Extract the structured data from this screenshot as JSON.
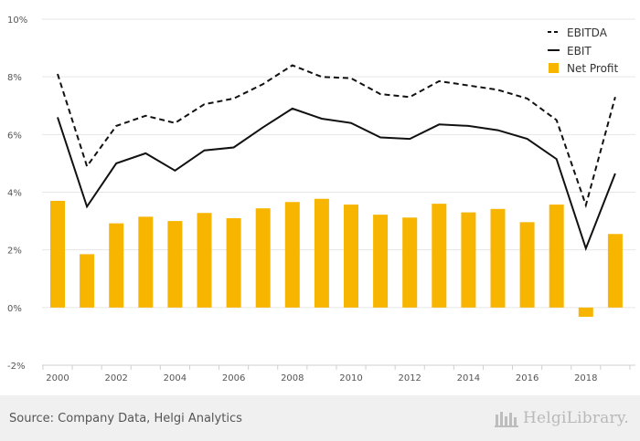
{
  "chart_data": {
    "type": "bar+line",
    "years": [
      2000,
      2001,
      2002,
      2003,
      2004,
      2005,
      2006,
      2007,
      2008,
      2009,
      2010,
      2011,
      2012,
      2013,
      2014,
      2015,
      2016,
      2017,
      2018,
      2019
    ],
    "x_tick_labels": [
      "2000",
      "2002",
      "2004",
      "2006",
      "2008",
      "2010",
      "2012",
      "2014",
      "2016",
      "2018"
    ],
    "y_tick_labels": [
      "10%",
      "8%",
      "6%",
      "4%",
      "2%",
      "0%",
      "-2%"
    ],
    "ylim": [
      -2,
      10
    ],
    "series": [
      {
        "name": "EBITDA",
        "type": "line",
        "style": "dashed",
        "color": "#111111",
        "values": [
          8.1,
          4.9,
          6.3,
          6.65,
          6.4,
          7.05,
          7.25,
          7.75,
          8.4,
          8.0,
          7.95,
          7.4,
          7.3,
          7.85,
          7.7,
          7.55,
          7.25,
          6.5,
          3.55,
          7.3
        ]
      },
      {
        "name": "EBIT",
        "type": "line",
        "style": "solid",
        "color": "#111111",
        "values": [
          6.6,
          3.5,
          5.0,
          5.35,
          4.75,
          5.45,
          5.55,
          6.25,
          6.9,
          6.55,
          6.4,
          5.9,
          5.85,
          6.35,
          6.3,
          6.15,
          5.85,
          5.15,
          2.05,
          4.65
        ]
      },
      {
        "name": "Net Profit",
        "type": "bar",
        "color": "#f7b500",
        "values": [
          3.7,
          1.85,
          2.92,
          3.15,
          3.0,
          3.28,
          3.1,
          3.44,
          3.66,
          3.77,
          3.57,
          3.22,
          3.12,
          3.6,
          3.3,
          3.42,
          2.96,
          3.57,
          -0.32,
          2.55
        ]
      }
    ],
    "legend_position": "top-right",
    "grid": true
  },
  "footer": {
    "source": "Source: Company Data, Helgi Analytics",
    "logo_text": "HelgiLibrary."
  }
}
